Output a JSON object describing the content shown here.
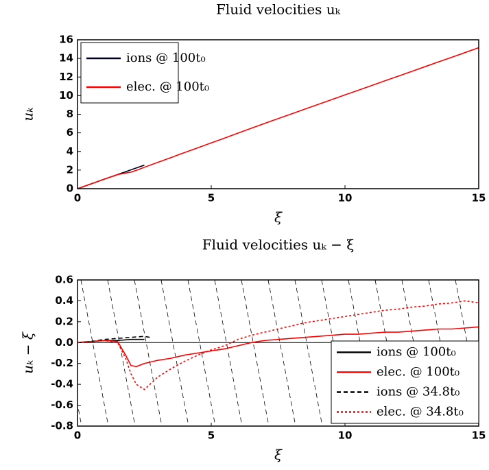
{
  "chart_data": [
    {
      "type": "line",
      "title": "Fluid velocities uₖ",
      "x_label": "ξ",
      "y_label": "uₖ",
      "xlim": [
        0,
        15
      ],
      "xticks": [
        0,
        5,
        10,
        15
      ],
      "ylim": [
        0,
        16
      ],
      "yticks": [
        0,
        2,
        4,
        6,
        8,
        10,
        12,
        14,
        16
      ],
      "legend": "upper left",
      "series": [
        {
          "name": "ions @ 100t₀",
          "color": "#000022",
          "dash": "solid",
          "x": [
            0,
            0.5,
            1,
            1.5,
            2,
            2.5
          ],
          "values": [
            0,
            0.51,
            1.02,
            1.52,
            2.03,
            2.53
          ]
        },
        {
          "name": "elec. @ 100t₀",
          "color": "#ff0000",
          "dash": "solid",
          "x": [
            0,
            0.5,
            1,
            1.5,
            1.8,
            2,
            2.2,
            2.5,
            3,
            3.5,
            4,
            4.5,
            5,
            5.5,
            6,
            6.5,
            7,
            7.5,
            8,
            8.5,
            9,
            9.5,
            10,
            10.5,
            11,
            11.5,
            12,
            12.5,
            13,
            13.5,
            14,
            14.5,
            15
          ],
          "values": [
            0,
            0.51,
            1.02,
            1.51,
            1.68,
            1.78,
            1.97,
            2.3,
            2.83,
            3.35,
            3.88,
            4.4,
            4.92,
            5.44,
            5.97,
            6.5,
            7.02,
            7.53,
            8.04,
            8.55,
            9.06,
            9.57,
            10.08,
            10.58,
            11.09,
            11.6,
            12.1,
            12.61,
            13.12,
            13.63,
            14.13,
            14.64,
            15.15
          ]
        }
      ]
    },
    {
      "type": "line",
      "title": "Fluid velocities uₖ − ξ",
      "x_label": "ξ",
      "y_label": "uₖ − ξ",
      "xlim": [
        0,
        15
      ],
      "xticks": [
        0,
        5,
        10,
        15
      ],
      "ylim": [
        -0.8,
        0.6
      ],
      "yticks": [
        0.6,
        0.4,
        0.2,
        {
          "value": 0,
          "label": "0.0"
        },
        -0.2,
        -0.4,
        -0.6,
        -0.8
      ],
      "legend": "lower right",
      "zero_line": true,
      "series": [
        {
          "name": "ions @ 100t₀",
          "color": "#000000",
          "dash": "solid",
          "x": [
            0,
            0.5,
            1,
            1.5,
            2,
            2.5
          ],
          "values": [
            0,
            0.01,
            0.02,
            0.02,
            0.03,
            0.03
          ]
        },
        {
          "name": "elec. @ 100t₀",
          "color": "#ff0000",
          "dash": "solid",
          "x": [
            0,
            0.5,
            1,
            1.5,
            1.8,
            2,
            2.2,
            2.5,
            3,
            3.5,
            4,
            4.5,
            5,
            5.5,
            6,
            6.5,
            7,
            7.5,
            8,
            8.5,
            9,
            9.5,
            10,
            10.5,
            11,
            11.5,
            12,
            12.5,
            13,
            13.5,
            14,
            14.5,
            15
          ],
          "values": [
            0,
            0.01,
            0.02,
            0.01,
            -0.12,
            -0.22,
            -0.23,
            -0.2,
            -0.17,
            -0.15,
            -0.12,
            -0.1,
            -0.08,
            -0.06,
            -0.03,
            0,
            0.02,
            0.03,
            0.04,
            0.05,
            0.06,
            0.07,
            0.08,
            0.08,
            0.09,
            0.1,
            0.1,
            0.11,
            0.12,
            0.13,
            0.13,
            0.14,
            0.15
          ]
        },
        {
          "name": "ions @ 34.8t₀",
          "color": "#000000",
          "dash": "dashed",
          "x": [
            0,
            0.5,
            1,
            1.5,
            2,
            2.5,
            2.7
          ],
          "values": [
            0,
            0.01,
            0.03,
            0.04,
            0.05,
            0.06,
            0.05
          ]
        },
        {
          "name": "elec. @ 34.8t₀",
          "color": "#ff0000",
          "dash": "dotted",
          "x": [
            0,
            0.5,
            1,
            1.5,
            1.8,
            2,
            2.2,
            2.5,
            3,
            3.5,
            4,
            4.5,
            5,
            5.5,
            6,
            6.5,
            7,
            7.5,
            8,
            8.5,
            9,
            9.5,
            10,
            10.5,
            11,
            11.5,
            12,
            12.5,
            13,
            13.5,
            14,
            14.5,
            15
          ],
          "values": [
            0,
            0.01,
            0.02,
            0,
            -0.15,
            -0.3,
            -0.4,
            -0.45,
            -0.33,
            -0.25,
            -0.18,
            -0.12,
            -0.07,
            -0.03,
            0.03,
            0.07,
            0.1,
            0.13,
            0.16,
            0.19,
            0.21,
            0.23,
            0.25,
            0.27,
            0.29,
            0.31,
            0.32,
            0.34,
            0.35,
            0.37,
            0.38,
            0.4,
            0.38
          ]
        }
      ]
    }
  ]
}
